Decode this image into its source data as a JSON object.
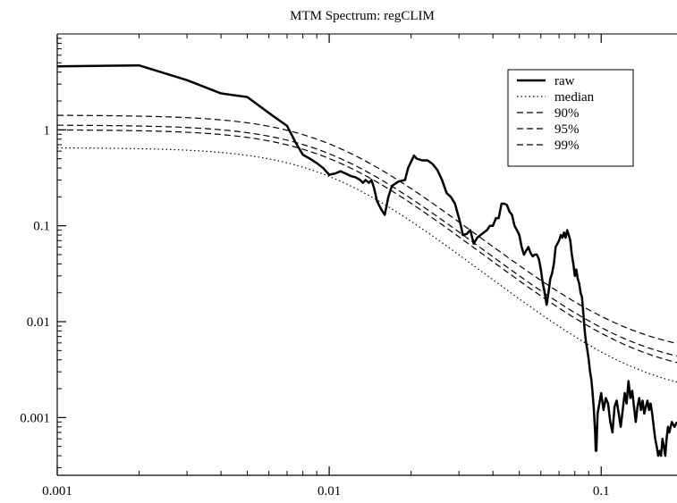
{
  "chart_data": {
    "type": "line",
    "title": "MTM Spectrum: regCLIM",
    "xlabel": "",
    "ylabel": "",
    "xscale": "log",
    "yscale": "log",
    "xlim": [
      0.001,
      0.19
    ],
    "ylim": [
      0.00025,
      10
    ],
    "grid": false,
    "legend_position": "top-right",
    "x_ticks": [
      {
        "value": 0.001,
        "label": "0.001"
      },
      {
        "value": 0.01,
        "label": "0.01"
      },
      {
        "value": 0.1,
        "label": "0.1"
      }
    ],
    "y_ticks": [
      {
        "value": 0.001,
        "label": "0.001"
      },
      {
        "value": 0.01,
        "label": "0.01"
      },
      {
        "value": 0.1,
        "label": "0.1"
      },
      {
        "value": 1,
        "label": "1"
      }
    ],
    "series": [
      {
        "name": "raw",
        "style": "solid",
        "width": 2.5,
        "color": "#000000",
        "points": [
          [
            0.001,
            4.6
          ],
          [
            0.002,
            4.7
          ],
          [
            0.003,
            3.3
          ],
          [
            0.004,
            2.4
          ],
          [
            0.005,
            2.2
          ],
          [
            0.006,
            1.5
          ],
          [
            0.007,
            1.1
          ],
          [
            0.0075,
            0.75
          ],
          [
            0.008,
            0.55
          ],
          [
            0.0085,
            0.5
          ],
          [
            0.009,
            0.45
          ],
          [
            0.0095,
            0.4
          ],
          [
            0.01,
            0.34
          ],
          [
            0.0105,
            0.35
          ],
          [
            0.011,
            0.37
          ],
          [
            0.0115,
            0.35
          ],
          [
            0.012,
            0.33
          ],
          [
            0.0125,
            0.32
          ],
          [
            0.013,
            0.3
          ],
          [
            0.0133,
            0.28
          ],
          [
            0.0136,
            0.3
          ],
          [
            0.014,
            0.28
          ],
          [
            0.0143,
            0.3
          ],
          [
            0.0146,
            0.25
          ],
          [
            0.015,
            0.18
          ],
          [
            0.0155,
            0.15
          ],
          [
            0.016,
            0.13
          ],
          [
            0.0165,
            0.2
          ],
          [
            0.017,
            0.26
          ],
          [
            0.018,
            0.29
          ],
          [
            0.019,
            0.3
          ],
          [
            0.0195,
            0.4
          ],
          [
            0.0205,
            0.54
          ],
          [
            0.021,
            0.5
          ],
          [
            0.022,
            0.48
          ],
          [
            0.023,
            0.48
          ],
          [
            0.024,
            0.44
          ],
          [
            0.025,
            0.38
          ],
          [
            0.026,
            0.3
          ],
          [
            0.027,
            0.22
          ],
          [
            0.028,
            0.2
          ],
          [
            0.029,
            0.17
          ],
          [
            0.03,
            0.12
          ],
          [
            0.0305,
            0.1
          ],
          [
            0.031,
            0.08
          ],
          [
            0.032,
            0.082
          ],
          [
            0.033,
            0.09
          ],
          [
            0.034,
            0.065
          ],
          [
            0.035,
            0.075
          ],
          [
            0.036,
            0.08
          ],
          [
            0.037,
            0.085
          ],
          [
            0.038,
            0.09
          ],
          [
            0.039,
            0.1
          ],
          [
            0.04,
            0.1
          ],
          [
            0.041,
            0.12
          ],
          [
            0.042,
            0.12
          ],
          [
            0.043,
            0.17
          ],
          [
            0.044,
            0.17
          ],
          [
            0.045,
            0.165
          ],
          [
            0.046,
            0.14
          ],
          [
            0.047,
            0.13
          ],
          [
            0.048,
            0.1
          ],
          [
            0.049,
            0.09
          ],
          [
            0.05,
            0.08
          ],
          [
            0.051,
            0.06
          ],
          [
            0.052,
            0.05
          ],
          [
            0.053,
            0.055
          ],
          [
            0.054,
            0.06
          ],
          [
            0.055,
            0.052
          ],
          [
            0.056,
            0.048
          ],
          [
            0.057,
            0.05
          ],
          [
            0.058,
            0.05
          ],
          [
            0.059,
            0.045
          ],
          [
            0.06,
            0.035
          ],
          [
            0.061,
            0.025
          ],
          [
            0.062,
            0.02
          ],
          [
            0.063,
            0.015
          ],
          [
            0.064,
            0.02
          ],
          [
            0.065,
            0.028
          ],
          [
            0.066,
            0.032
          ],
          [
            0.067,
            0.04
          ],
          [
            0.068,
            0.06
          ],
          [
            0.069,
            0.065
          ],
          [
            0.07,
            0.07
          ],
          [
            0.071,
            0.08
          ],
          [
            0.072,
            0.075
          ],
          [
            0.073,
            0.085
          ],
          [
            0.074,
            0.075
          ],
          [
            0.075,
            0.09
          ],
          [
            0.076,
            0.08
          ],
          [
            0.077,
            0.07
          ],
          [
            0.078,
            0.05
          ],
          [
            0.079,
            0.04
          ],
          [
            0.08,
            0.03
          ],
          [
            0.081,
            0.035
          ],
          [
            0.082,
            0.028
          ],
          [
            0.083,
            0.025
          ],
          [
            0.084,
            0.02
          ],
          [
            0.085,
            0.018
          ],
          [
            0.086,
            0.012
          ],
          [
            0.087,
            0.008
          ],
          [
            0.088,
            0.006
          ],
          [
            0.089,
            0.005
          ],
          [
            0.09,
            0.004
          ],
          [
            0.091,
            0.003
          ],
          [
            0.092,
            0.0025
          ],
          [
            0.093,
            0.0018
          ],
          [
            0.094,
            0.0012
          ],
          [
            0.095,
            0.0007
          ],
          [
            0.0955,
            0.00045
          ],
          [
            0.096,
            0.00045
          ],
          [
            0.097,
            0.0011
          ],
          [
            0.098,
            0.0013
          ],
          [
            0.1,
            0.0018
          ],
          [
            0.102,
            0.0012
          ],
          [
            0.104,
            0.0016
          ],
          [
            0.106,
            0.0014
          ],
          [
            0.108,
            0.0009
          ],
          [
            0.11,
            0.0007
          ],
          [
            0.112,
            0.0013
          ],
          [
            0.114,
            0.0015
          ],
          [
            0.116,
            0.0011
          ],
          [
            0.118,
            0.0008
          ],
          [
            0.12,
            0.0012
          ],
          [
            0.122,
            0.0018
          ],
          [
            0.124,
            0.0014
          ],
          [
            0.126,
            0.0024
          ],
          [
            0.128,
            0.0016
          ],
          [
            0.13,
            0.0019
          ],
          [
            0.132,
            0.0013
          ],
          [
            0.134,
            0.0009
          ],
          [
            0.136,
            0.0013
          ],
          [
            0.138,
            0.0016
          ],
          [
            0.14,
            0.0012
          ],
          [
            0.142,
            0.0015
          ],
          [
            0.144,
            0.0011
          ],
          [
            0.146,
            0.0013
          ],
          [
            0.148,
            0.0015
          ],
          [
            0.15,
            0.0012
          ],
          [
            0.152,
            0.0014
          ],
          [
            0.154,
            0.0011
          ],
          [
            0.156,
            0.0008
          ],
          [
            0.158,
            0.0006
          ],
          [
            0.16,
            0.0005
          ],
          [
            0.162,
            0.0004
          ],
          [
            0.164,
            0.00045
          ],
          [
            0.166,
            0.0004
          ],
          [
            0.168,
            0.0006
          ],
          [
            0.17,
            0.0005
          ],
          [
            0.172,
            0.0004
          ],
          [
            0.174,
            0.0006
          ],
          [
            0.176,
            0.0008
          ],
          [
            0.178,
            0.0007
          ],
          [
            0.18,
            0.0008
          ],
          [
            0.182,
            0.0009
          ],
          [
            0.186,
            0.0008
          ],
          [
            0.19,
            0.0009
          ]
        ]
      },
      {
        "name": "median",
        "style": "dotted",
        "width": 1.2,
        "color": "#000000",
        "model": {
          "s0": 0.65,
          "fc": 0.01,
          "p": 2.3,
          "floor": 0.0016
        }
      },
      {
        "name": "90%",
        "style": "dashed",
        "width": 1.2,
        "color": "#000000",
        "model": {
          "s0": 1.0,
          "fc": 0.01,
          "p": 2.3,
          "floor": 0.0026
        }
      },
      {
        "name": "95%",
        "style": "dashed",
        "width": 1.2,
        "color": "#000000",
        "model": {
          "s0": 1.12,
          "fc": 0.01,
          "p": 2.3,
          "floor": 0.0031
        }
      },
      {
        "name": "99%",
        "style": "dashed",
        "width": 1.2,
        "color": "#000000",
        "model": {
          "s0": 1.42,
          "fc": 0.01,
          "p": 2.3,
          "floor": 0.0043
        }
      }
    ]
  }
}
